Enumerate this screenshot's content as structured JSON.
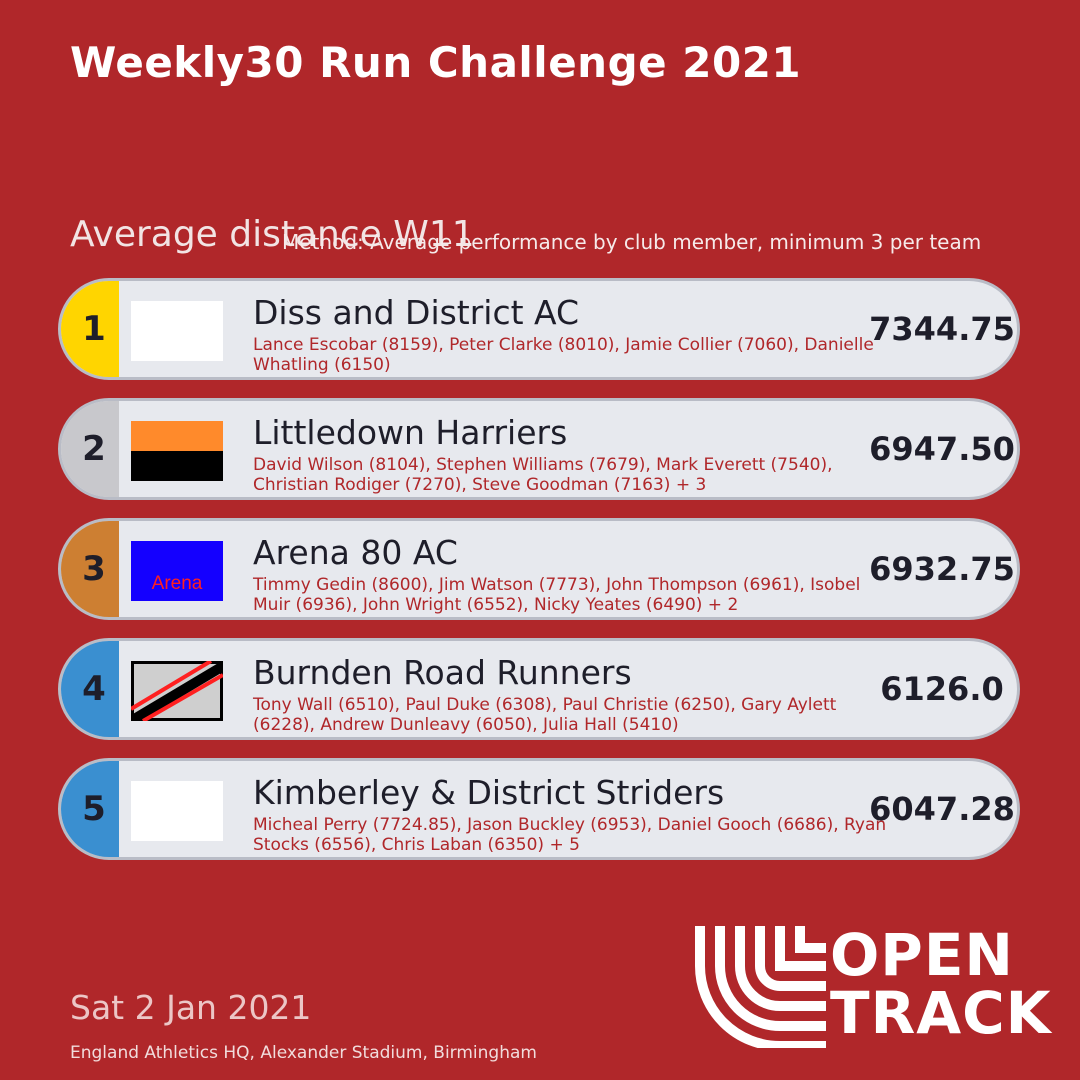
{
  "header": {
    "title": "Weekly30 Run Challenge 2021",
    "subtitle": "Average distance W11",
    "method": "Method: Average performance by club member, minimum 3 per team"
  },
  "colors": {
    "background": "#b0272a",
    "rank_gold": "#ffd500",
    "rank_silver": "#c8c8cc",
    "rank_bronze": "#cd7f32",
    "rank_blue": "#3a8fd0",
    "row_bg": "#e7e9ee"
  },
  "teams": [
    {
      "rank": "1",
      "name": "Diss and District AC",
      "members": "Lance Escobar (8159), Peter Clarke (8010), Jamie Collier (7060), Danielle Whatling (6150)",
      "score": "7344.75",
      "logo": "white-blank-logo"
    },
    {
      "rank": "2",
      "name": "Littledown Harriers",
      "members": "David Wilson (8104), Stephen Williams (7679), Mark Everett (7540), Christian Rodiger (7270), Steve Goodman (7163) + 3",
      "score": "6947.50",
      "logo": "orange-black-logo"
    },
    {
      "rank": "3",
      "name": "Arena 80 AC",
      "members": "Timmy Gedin (8600), Jim Watson (7773), John Thompson (6961), Isobel Muir (6936), John Wright (6552), Nicky Yeates (6490) + 2",
      "score": "6932.75",
      "logo": "arena-logo",
      "logo_text": "Arena"
    },
    {
      "rank": "4",
      "name": "Burnden Road Runners",
      "members": "Tony Wall (6510), Paul Duke (6308), Paul Christie (6250), Gary Aylett (6228), Andrew Dunleavy (6050), Julia Hall (5410)",
      "score": "6126.0",
      "logo": "diagonal-stripe-logo"
    },
    {
      "rank": "5",
      "name": "Kimberley & District Striders",
      "members": "Micheal Perry (7724.85), Jason Buckley (6953), Daniel Gooch (6686), Ryan Stocks (6556), Chris Laban (6350) + 5",
      "score": "6047.28",
      "logo": "white-blank-logo"
    }
  ],
  "footer": {
    "date": "Sat 2 Jan 2021",
    "venue": "England Athletics HQ, Alexander Stadium, Birmingham",
    "brand_line1": "OPEN",
    "brand_line2": "TRACK"
  }
}
